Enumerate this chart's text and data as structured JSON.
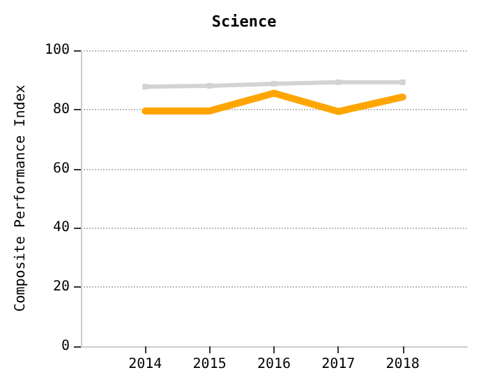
{
  "chart_data": {
    "type": "line",
    "title": "Science",
    "ylabel": "Composite Performance Index",
    "x": [
      2014,
      2015,
      2016,
      2017,
      2018
    ],
    "xlim": [
      2013,
      2019
    ],
    "xticks": [
      2014,
      2015,
      2016,
      2017,
      2018
    ],
    "ylim": [
      0,
      100
    ],
    "yticks": [
      0,
      20,
      40,
      60,
      80,
      100
    ],
    "grid": "y",
    "series": [
      {
        "color": "#d3d3d3",
        "values": [
          87.7,
          88,
          88.7,
          89.2,
          89.2
        ],
        "marker": "square"
      },
      {
        "color": "#ffa500",
        "values": [
          79.5,
          79.5,
          85.5,
          79.3,
          84.2
        ],
        "marker": "none"
      }
    ]
  }
}
